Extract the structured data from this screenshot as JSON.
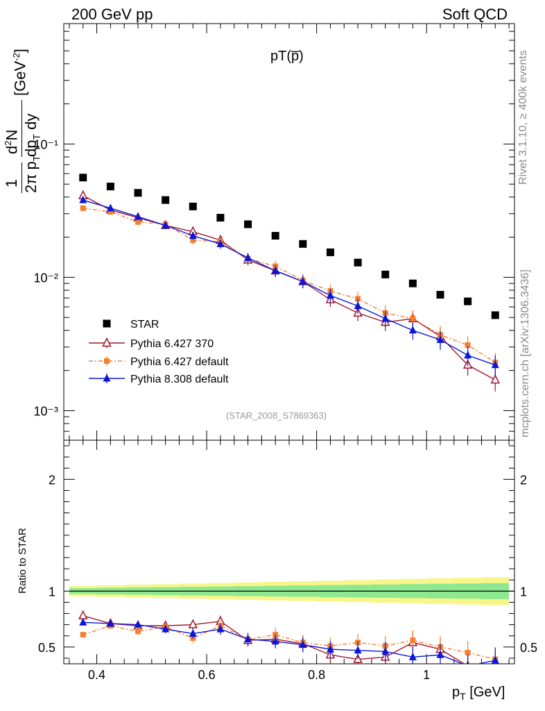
{
  "header": {
    "left": "200 GeV pp",
    "right": "Soft QCD"
  },
  "side_labels": {
    "rivet": "Rivet 3.1.10, ≥ 400k events",
    "mcplots": "mcplots.cern.ch [arXiv:1306.3436]"
  },
  "chart_data": [
    {
      "type": "scatter",
      "title": "pT(p̅)",
      "xlabel": "p_T [GeV]",
      "ylabel": "1/(2π p_T) d²N/(dp_T dy) [GeV⁻²]",
      "xlim": [
        0.34,
        1.16
      ],
      "ylim": [
        0.0006,
        0.8
      ],
      "log_y": true,
      "y_ticks": [
        "10⁻¹",
        "10⁻²",
        "10⁻³"
      ],
      "analysis_ref": "(STAR_2008_S7869363)",
      "legend_position": "center-left",
      "x": [
        0.375,
        0.425,
        0.475,
        0.525,
        0.575,
        0.625,
        0.675,
        0.725,
        0.775,
        0.825,
        0.875,
        0.925,
        0.975,
        1.025,
        1.075,
        1.125
      ],
      "series": [
        {
          "name": "STAR",
          "color": "#000000",
          "marker": "square",
          "values": [
            0.056,
            0.048,
            0.043,
            0.038,
            0.034,
            0.028,
            0.025,
            0.0205,
            0.0178,
            0.0154,
            0.0129,
            0.0105,
            0.009,
            0.0074,
            0.0066,
            0.0052
          ]
        },
        {
          "name": "Pythia 6.427 370",
          "color": "#a0162a",
          "marker": "open-triangle",
          "values": [
            0.041,
            0.032,
            0.028,
            0.0245,
            0.022,
            0.019,
            0.0135,
            0.0112,
            0.0093,
            0.0068,
            0.0054,
            0.0046,
            0.0049,
            0.0036,
            0.0022,
            0.0017
          ]
        },
        {
          "name": "Pythia 6.427 default",
          "color": "#f47f30",
          "marker": "filled-square",
          "values": [
            0.033,
            0.031,
            0.026,
            0.025,
            0.019,
            0.0185,
            0.0138,
            0.0121,
            0.0095,
            0.0079,
            0.0069,
            0.0054,
            0.0049,
            0.0037,
            0.0031,
            0.0023
          ]
        },
        {
          "name": "Pythia 8.308 default",
          "color": "#0b16d6",
          "marker": "filled-triangle",
          "values": [
            0.038,
            0.033,
            0.0285,
            0.0245,
            0.0205,
            0.0178,
            0.014,
            0.0112,
            0.0093,
            0.0073,
            0.0061,
            0.0049,
            0.004,
            0.0034,
            0.0026,
            0.0022
          ]
        }
      ]
    },
    {
      "type": "scatter",
      "xlabel": "p_T [GeV]",
      "ylabel": "Ratio to STAR",
      "xlim": [
        0.34,
        1.16
      ],
      "ylim": [
        0.35,
        2.35
      ],
      "y_ticks": [
        "0.5",
        "1",
        "2"
      ],
      "x_ticks": [
        "0.4",
        "0.6",
        "0.8",
        "1"
      ],
      "x": [
        0.375,
        0.425,
        0.475,
        0.525,
        0.575,
        0.625,
        0.675,
        0.725,
        0.775,
        0.825,
        0.875,
        0.925,
        0.975,
        1.025,
        1.075,
        1.125
      ],
      "series": [
        {
          "name": "Pythia 6.427 370",
          "color": "#a0162a",
          "values": [
            0.78,
            0.71,
            0.69,
            0.69,
            0.7,
            0.73,
            0.56,
            0.57,
            0.53,
            0.43,
            0.39,
            0.41,
            0.54,
            0.48,
            0.33,
            0.33
          ]
        },
        {
          "name": "Pythia 6.427 default",
          "color": "#f47f30",
          "values": [
            0.61,
            0.69,
            0.64,
            0.68,
            0.58,
            0.69,
            0.57,
            0.61,
            0.54,
            0.51,
            0.54,
            0.51,
            0.56,
            0.5,
            0.45,
            0.39
          ]
        },
        {
          "name": "Pythia 8.308 default",
          "color": "#0b16d6",
          "values": [
            0.72,
            0.71,
            0.7,
            0.66,
            0.62,
            0.66,
            0.57,
            0.55,
            0.52,
            0.48,
            0.47,
            0.46,
            0.41,
            0.43,
            0.33,
            0.38
          ]
        }
      ]
    }
  ]
}
